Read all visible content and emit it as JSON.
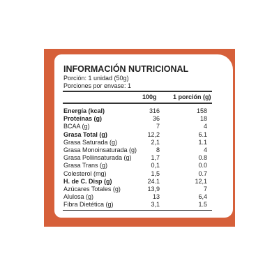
{
  "header": {
    "title": "INFORMACIÓN NUTRICIONAL",
    "serving": "Porción: 1 unidad (50g)",
    "servings_per_pack": "Porciones por envase: 1"
  },
  "table": {
    "columns": [
      "100g",
      "1 porción (g)"
    ],
    "rows": [
      {
        "label": "Energía (kcal)",
        "per100": "316",
        "portion": "158",
        "bold": true
      },
      {
        "label": "Proteínas (g)",
        "per100": "36",
        "portion": "18",
        "bold": true
      },
      {
        "label": "BCAA (g)",
        "per100": "7",
        "portion": "4",
        "bold": false
      },
      {
        "label": "Grasa Total (g)",
        "per100": "12,2",
        "portion": "6.1",
        "bold": true
      },
      {
        "label": "Grasa Saturada (g)",
        "per100": "2,1",
        "portion": "1.1",
        "bold": false
      },
      {
        "label": "Grasa Monoinsaturada (g)",
        "per100": "8",
        "portion": "4",
        "bold": false
      },
      {
        "label": "Grasa Poliinsaturada (g)",
        "per100": "1,7",
        "portion": "0.8",
        "bold": false
      },
      {
        "label": "Grasa Trans (g)",
        "per100": "0,1",
        "portion": "0.0",
        "bold": false
      },
      {
        "label": "Colesterol (mg)",
        "per100": "1,5",
        "portion": "0.7",
        "bold": false
      },
      {
        "label": "H. de C. Disp (g)",
        "per100": "24.1",
        "portion": "12,1",
        "bold": true
      },
      {
        "label": "Azúcares Totales (g)",
        "per100": "13,9",
        "portion": "7",
        "bold": false
      },
      {
        "label": "Alulosa (g)",
        "per100": "13",
        "portion": "6,4",
        "bold": false
      },
      {
        "label": "Fibra Dietética (g)",
        "per100": "3,1",
        "portion": "1.5",
        "bold": false
      }
    ]
  }
}
